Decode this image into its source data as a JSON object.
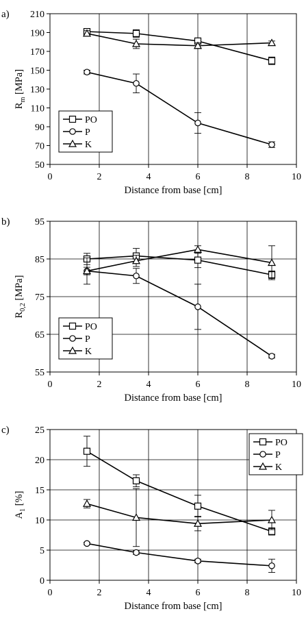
{
  "chart_data": [
    {
      "type": "line",
      "panel_label": "a)",
      "title": "",
      "xlabel": "Distance from base [cm]",
      "ylabel": "R_m [MPa]",
      "ylabel_parts": {
        "main": "R",
        "sub": "m",
        "rest": " [MPa]"
      },
      "xlim": [
        0,
        10
      ],
      "ylim": [
        50,
        210
      ],
      "xticks": [
        0,
        2,
        4,
        6,
        8,
        10
      ],
      "yticks": [
        50,
        70,
        90,
        110,
        130,
        150,
        170,
        190,
        210
      ],
      "grid": "vertical",
      "legend_position": "bottom-left",
      "series": [
        {
          "name": "PO",
          "marker": "square",
          "x": [
            1.5,
            3.5,
            6,
            9
          ],
          "y": [
            191,
            189,
            181,
            160
          ],
          "err": [
            2,
            4,
            3,
            4
          ]
        },
        {
          "name": "P",
          "marker": "circle",
          "x": [
            1.5,
            3.5,
            6,
            9
          ],
          "y": [
            148,
            136,
            94,
            71
          ],
          "err": [
            2,
            10,
            11,
            3
          ]
        },
        {
          "name": "K",
          "marker": "triangle",
          "x": [
            1.5,
            3.5,
            6,
            9
          ],
          "y": [
            189,
            178,
            176,
            179
          ],
          "err": [
            3,
            5,
            3,
            2
          ]
        }
      ]
    },
    {
      "type": "line",
      "panel_label": "b)",
      "title": "",
      "xlabel": "Distance from base [cm]",
      "ylabel": "R_0,2 [MPa]",
      "ylabel_parts": {
        "main": "R",
        "sub": "0,2",
        "rest": " [MPa]"
      },
      "xlim": [
        0,
        10
      ],
      "ylim": [
        55,
        95
      ],
      "xticks": [
        0,
        2,
        4,
        6,
        8,
        10
      ],
      "yticks": [
        55,
        65,
        75,
        85,
        95
      ],
      "grid": "both",
      "legend_position": "bottom-left",
      "series": [
        {
          "name": "PO",
          "marker": "square",
          "x": [
            1.5,
            3.5,
            6,
            9
          ],
          "y": [
            85,
            85.8,
            84.7,
            80.8
          ],
          "err": [
            1.5,
            2,
            2,
            1
          ]
        },
        {
          "name": "P",
          "marker": "circle",
          "x": [
            1.5,
            3.5,
            6,
            9
          ],
          "y": [
            81.8,
            80.5,
            72.3,
            59.2
          ],
          "err": [
            3.5,
            2,
            6,
            0.5
          ]
        },
        {
          "name": "K",
          "marker": "triangle",
          "x": [
            1.5,
            3.5,
            6,
            9
          ],
          "y": [
            81.8,
            84.5,
            87.5,
            84
          ],
          "err": [
            1,
            1.5,
            1,
            4.5
          ]
        }
      ]
    },
    {
      "type": "line",
      "panel_label": "c)",
      "title": "",
      "xlabel": "Distance from base [cm]",
      "ylabel": "A_1 [%]",
      "ylabel_parts": {
        "main": "A",
        "sub": "1",
        "rest": " [%]"
      },
      "xlim": [
        0,
        10
      ],
      "ylim": [
        0,
        25
      ],
      "xticks": [
        0,
        2,
        4,
        6,
        8,
        10
      ],
      "yticks": [
        0,
        5,
        10,
        15,
        20,
        25
      ],
      "grid": "both",
      "legend_position": "top-right",
      "series": [
        {
          "name": "PO",
          "marker": "square",
          "x": [
            1.5,
            3.5,
            6,
            9
          ],
          "y": [
            21.4,
            16.5,
            12.3,
            8.1
          ],
          "err": [
            2.5,
            1,
            1.8,
            0.6
          ]
        },
        {
          "name": "P",
          "marker": "circle",
          "x": [
            1.5,
            3.5,
            6,
            9
          ],
          "y": [
            6.1,
            4.6,
            3.2,
            2.4
          ],
          "err": [
            0.2,
            0.3,
            0.3,
            1.1
          ]
        },
        {
          "name": "K",
          "marker": "triangle",
          "x": [
            1.5,
            3.5,
            6,
            9
          ],
          "y": [
            12.7,
            10.4,
            9.4,
            10
          ],
          "err": [
            0.7,
            4.8,
            1.2,
            1.6
          ]
        }
      ]
    }
  ]
}
